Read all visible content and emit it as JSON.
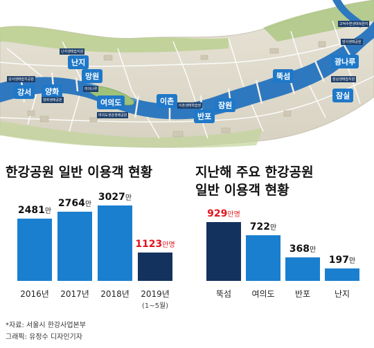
{
  "map": {
    "parks": [
      "강서",
      "양화",
      "난지",
      "망원",
      "여의도",
      "이촌",
      "반포",
      "잠원",
      "뚝섬",
      "광나루",
      "잠실"
    ],
    "small_labels": [
      "강서생태습지공원",
      "난지생태습지원",
      "양화생태공원",
      "여의나루",
      "여의도샛강생태공원",
      "이촌생태학습장",
      "고덕수변생태복원지",
      "암사생태공원",
      "잠실생태습지원"
    ]
  },
  "footer": {
    "source": "*자료: 서울시 한강사업본부",
    "credit": "그래픽: 유정수 디자인기자"
  },
  "chart_data": [
    {
      "type": "bar",
      "title": "한강공원 일반 이용객 현황",
      "categories": [
        "2016년",
        "2017년",
        "2018년",
        "2019년"
      ],
      "category_notes": [
        "",
        "",
        "",
        "(1~5월)"
      ],
      "values": [
        2481,
        2764,
        3027,
        1123
      ],
      "value_labels": [
        "2481",
        "2764",
        "3027",
        "1123"
      ],
      "units": [
        "만",
        "만",
        "만",
        "만명"
      ],
      "ylim": [
        0,
        3100
      ],
      "colors": [
        "#1a7fcf",
        "#1a7fcf",
        "#1a7fcf",
        "#13325e"
      ],
      "highlight_index": 3
    },
    {
      "type": "bar",
      "title_lines": [
        "지난해 주요 한강공원",
        "일반 이용객 현황"
      ],
      "categories": [
        "뚝섬",
        "여의도",
        "반포",
        "난지"
      ],
      "values": [
        929,
        722,
        368,
        197
      ],
      "value_labels": [
        "929",
        "722",
        "368",
        "197"
      ],
      "units": [
        "만명",
        "만",
        "만",
        "만"
      ],
      "ylim": [
        0,
        960
      ],
      "colors": [
        "#13325e",
        "#1a7fcf",
        "#1a7fcf",
        "#1a7fcf"
      ],
      "highlight_index": 0
    }
  ]
}
